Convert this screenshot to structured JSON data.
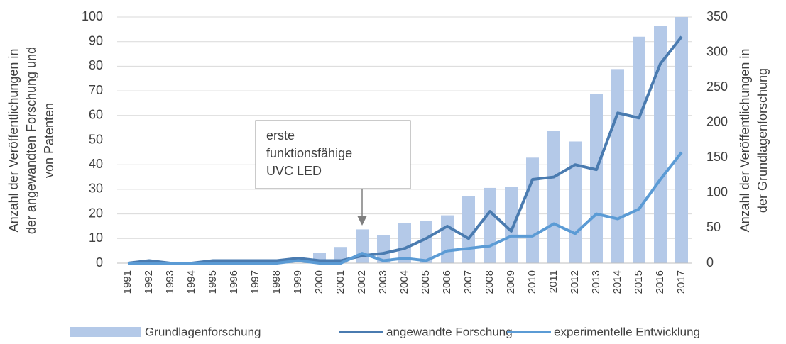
{
  "chart_data": {
    "type": "combo",
    "y_label": [
      "Anzahl der Veröffentlichungen in",
      "der angewandten Forschung und",
      "von Patenten"
    ],
    "y2_label": [
      "Anzahl der Veröffentlichungen in",
      "der Grundlagenforschung"
    ],
    "annotation": [
      "erste",
      "funktionsfähige",
      "UVC LED"
    ],
    "categories": [
      "1991",
      "1992",
      "1993",
      "1994",
      "1995",
      "1996",
      "1997",
      "1998",
      "1999",
      "2000",
      "2001",
      "2002",
      "2003",
      "2004",
      "2005",
      "2006",
      "2007",
      "2008",
      "2009",
      "2010",
      "2011",
      "2012",
      "2013",
      "2014",
      "2015",
      "2016",
      "2017"
    ],
    "series": [
      {
        "name": "Grundlagenforschung",
        "type": "bar",
        "axis": "y2",
        "color": "#b4c9e8",
        "values": [
          0,
          0,
          0,
          0,
          0,
          0,
          0,
          0,
          0,
          15,
          23,
          48,
          40,
          57,
          60,
          68,
          95,
          107,
          108,
          150,
          188,
          173,
          241,
          276,
          322,
          337,
          350
        ]
      },
      {
        "name": "angewandte Forschung",
        "type": "line",
        "axis": "y",
        "color": "#4a7bb0",
        "values": [
          0,
          1,
          0,
          0,
          1,
          1,
          1,
          1,
          2,
          1,
          1,
          3,
          4,
          6,
          10,
          15,
          10,
          21,
          13,
          34,
          35,
          40,
          38,
          61,
          59,
          81,
          92
        ]
      },
      {
        "name": "experimentelle Entwicklung",
        "type": "line",
        "axis": "y",
        "color": "#5b9bd5",
        "values": [
          0,
          0,
          0,
          0,
          0,
          0,
          0,
          0,
          1,
          0,
          0,
          4,
          1,
          2,
          1,
          5,
          6,
          7,
          11,
          11,
          16,
          12,
          20,
          18,
          22,
          34,
          45
        ]
      }
    ],
    "ylim": [
      0,
      100
    ],
    "yticks": [
      0,
      10,
      20,
      30,
      40,
      50,
      60,
      70,
      80,
      90,
      100
    ],
    "y2lim": [
      0,
      350
    ],
    "y2ticks": [
      0,
      50,
      100,
      150,
      200,
      250,
      300,
      350
    ],
    "grid": true,
    "legend": "bottom"
  }
}
